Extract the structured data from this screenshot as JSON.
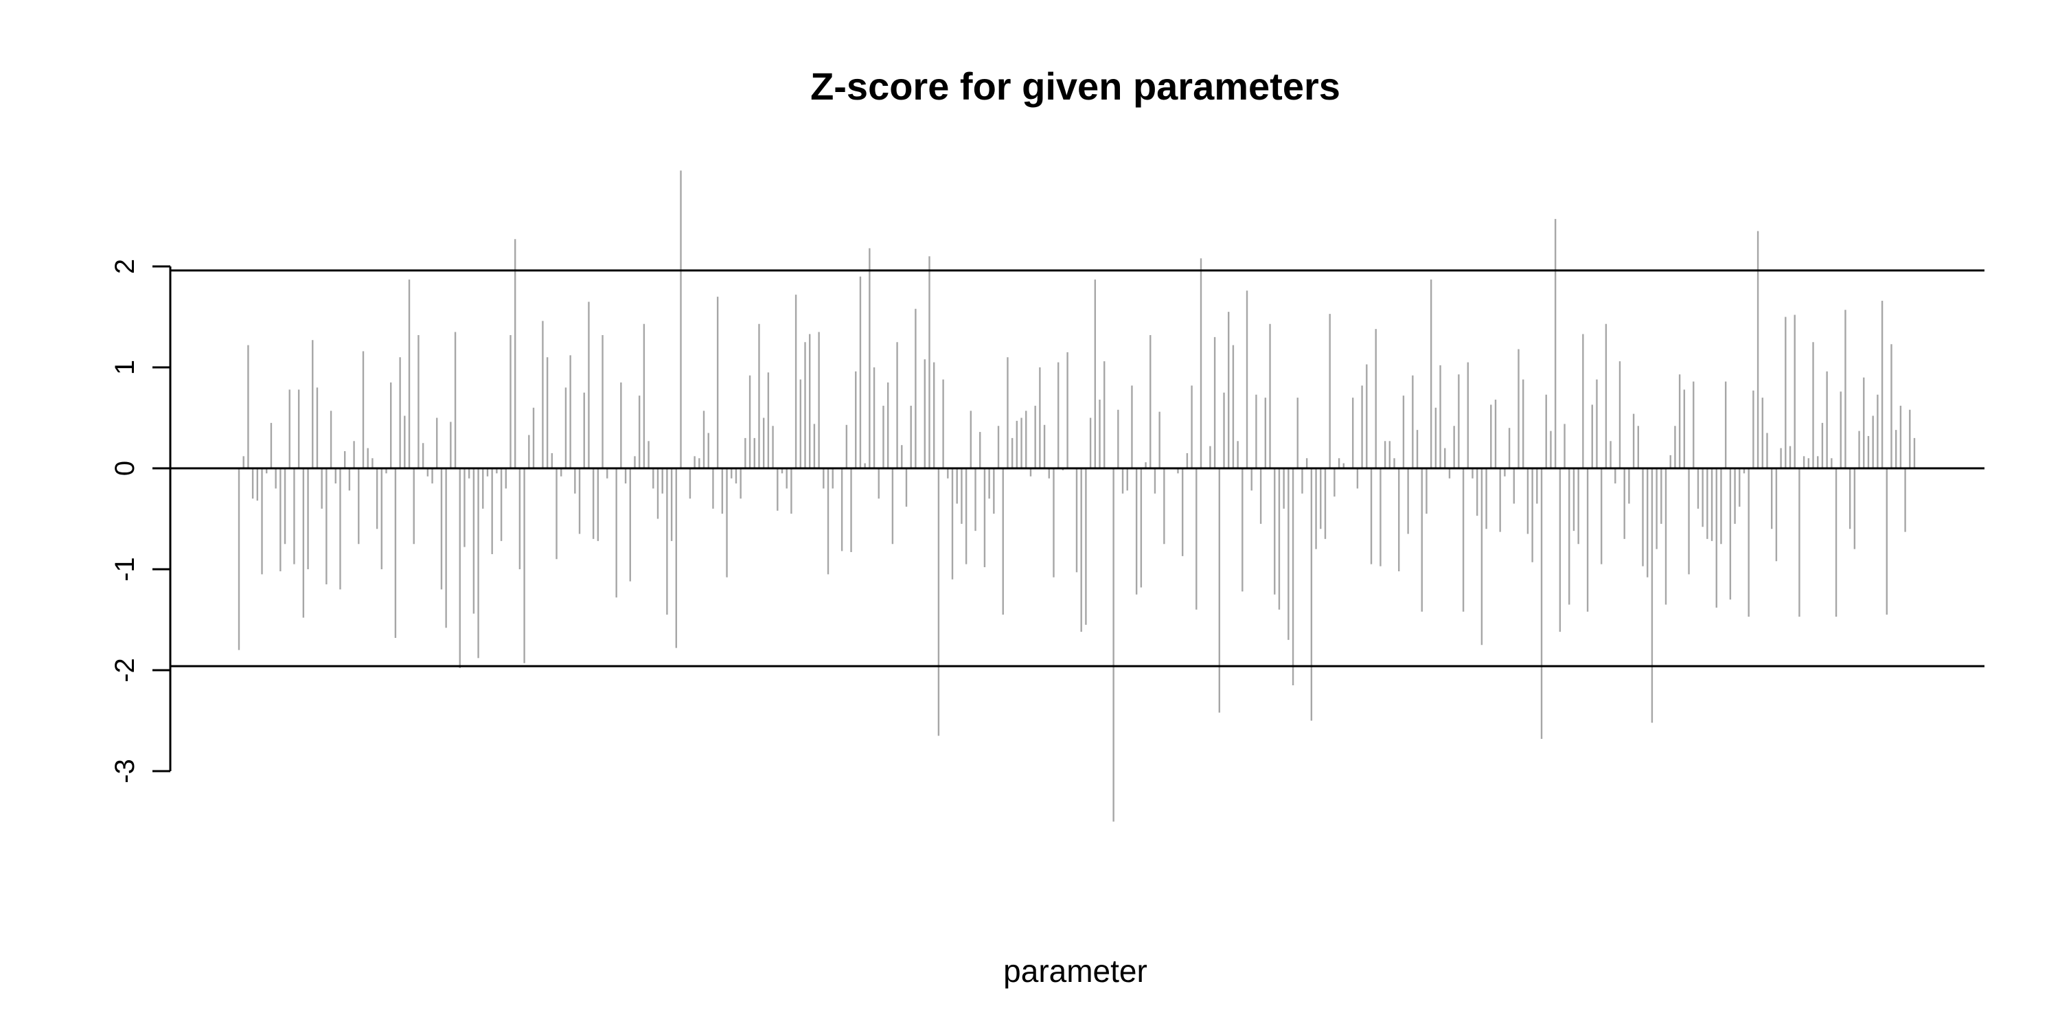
{
  "chart_data": {
    "type": "bar",
    "title": "Z-score for given parameters",
    "xlabel": "parameter",
    "ylabel": "",
    "ylim": [
      -3,
      3
    ],
    "yticks": [
      -3,
      -2,
      -1,
      0,
      1,
      2
    ],
    "ytick_labels": [
      "-3",
      "-2",
      "-1",
      "0",
      "1",
      "2"
    ],
    "reference_lines": [
      -1.96,
      0,
      1.96
    ],
    "bar_color": "#a6a6a6",
    "line_color": "#000000",
    "grid": false,
    "values": [
      -1.8,
      0.12,
      1.22,
      -0.3,
      -0.32,
      -1.05,
      -0.05,
      0.45,
      -0.2,
      -1.02,
      -0.75,
      0.78,
      -0.95,
      0.78,
      -1.48,
      -1.0,
      1.27,
      0.8,
      -0.4,
      -1.15,
      0.57,
      -0.15,
      -1.2,
      0.17,
      -0.22,
      0.27,
      -0.75,
      1.16,
      0.2,
      0.1,
      -0.6,
      -1.0,
      -0.05,
      0.85,
      -1.68,
      1.1,
      0.52,
      1.87,
      -0.75,
      1.32,
      0.25,
      -0.08,
      -0.15,
      0.5,
      -1.2,
      -1.58,
      0.46,
      1.35,
      -1.98,
      -0.78,
      -0.1,
      -1.44,
      -1.88,
      -0.4,
      -0.08,
      -0.85,
      -0.05,
      -0.72,
      -0.2,
      1.32,
      2.27,
      -1.0,
      -1.93,
      0.33,
      0.6,
      0.0,
      1.46,
      1.1,
      0.15,
      -0.9,
      -0.08,
      0.8,
      1.12,
      -0.25,
      -0.65,
      0.75,
      1.65,
      -0.7,
      -0.72,
      1.32,
      -0.1,
      0.0,
      -1.28,
      0.85,
      -0.15,
      -1.12,
      0.12,
      0.72,
      1.43,
      0.27,
      -0.2,
      -0.5,
      -0.25,
      -1.45,
      -0.72,
      -1.78,
      2.95,
      0.0,
      -0.3,
      0.12,
      0.1,
      0.57,
      0.35,
      -0.4,
      1.7,
      -0.45,
      -1.08,
      -0.1,
      -0.15,
      -0.3,
      0.3,
      0.92,
      0.3,
      1.43,
      0.5,
      0.95,
      0.42,
      -0.42,
      -0.05,
      -0.2,
      -0.45,
      1.72,
      0.88,
      1.25,
      1.33,
      0.44,
      1.35,
      -0.2,
      -1.05,
      -0.2,
      0.0,
      -0.82,
      0.43,
      -0.83,
      0.96,
      1.9,
      0.05,
      2.18,
      1.0,
      -0.3,
      0.62,
      0.85,
      -0.75,
      1.25,
      0.23,
      -0.38,
      0.62,
      1.58,
      0.0,
      1.08,
      2.1,
      1.05,
      -2.65,
      0.88,
      -0.1,
      -1.1,
      -0.35,
      -0.55,
      -0.95,
      0.57,
      -0.62,
      0.36,
      -0.98,
      -0.3,
      -0.45,
      0.42,
      -1.45,
      1.1,
      0.3,
      0.47,
      0.5,
      0.57,
      -0.08,
      0.62,
      1.0,
      0.43,
      -0.1,
      -1.08,
      1.05,
      -0.02,
      1.15,
      0.0,
      -1.03,
      -1.62,
      -1.55,
      0.5,
      1.87,
      0.68,
      1.06,
      0.0,
      -3.5,
      0.58,
      -0.25,
      -0.22,
      0.82,
      -1.25,
      -1.18,
      0.06,
      1.32,
      -0.25,
      0.56,
      -0.75,
      0.0,
      0.0,
      -0.05,
      -0.87,
      0.15,
      0.82,
      -1.4,
      2.08,
      0.0,
      0.22,
      1.3,
      -2.42,
      0.75,
      1.55,
      1.22,
      0.27,
      -1.22,
      1.76,
      -0.22,
      0.73,
      -0.55,
      0.7,
      1.43,
      -1.25,
      -1.4,
      -0.4,
      -1.7,
      -2.15,
      0.7,
      -0.25,
      0.1,
      -2.5,
      -0.8,
      -0.6,
      -0.7,
      1.53,
      -0.28,
      0.1,
      0.05,
      0.0,
      0.7,
      -0.2,
      0.82,
      1.03,
      -0.95,
      1.38,
      -0.97,
      0.27,
      0.27,
      0.1,
      -1.02,
      0.72,
      -0.65,
      0.92,
      0.38,
      -1.42,
      -0.45,
      1.87,
      0.6,
      1.02,
      0.2,
      -0.1,
      0.42,
      0.93,
      -1.42,
      1.05,
      -0.1,
      -0.47,
      -1.75,
      -0.6,
      0.63,
      0.68,
      -0.63,
      -0.08,
      0.4,
      -0.35,
      1.18,
      0.88,
      -0.65,
      -0.93,
      -0.35,
      -2.68,
      0.73,
      0.37,
      2.47,
      -1.62,
      0.44,
      -1.35,
      -0.62,
      -0.75,
      1.33,
      -1.42,
      0.63,
      0.88,
      -0.95,
      1.43,
      0.27,
      -0.15,
      1.06,
      -0.7,
      -0.35,
      0.54,
      0.42,
      -0.97,
      -1.08,
      -2.52,
      -0.8,
      -0.55,
      -1.35,
      0.13,
      0.42,
      0.93,
      0.78,
      -1.05,
      0.86,
      -0.4,
      -0.58,
      -0.7,
      -0.72,
      -1.38,
      -0.75,
      0.86,
      -1.3,
      -0.55,
      -0.38,
      -0.05,
      -1.47,
      0.77,
      2.35,
      0.7,
      0.35,
      -0.6,
      -0.92,
      0.2,
      1.5,
      0.22,
      1.52,
      -1.47,
      0.12,
      0.1,
      1.25,
      0.12,
      0.45,
      0.96,
      0.1,
      -1.47,
      0.76,
      1.57,
      -0.6,
      -0.8,
      0.37,
      0.9,
      0.32,
      0.52,
      0.73,
      1.66,
      -1.45,
      1.23,
      0.38,
      0.62,
      -0.63,
      0.58,
      0.3
    ]
  }
}
